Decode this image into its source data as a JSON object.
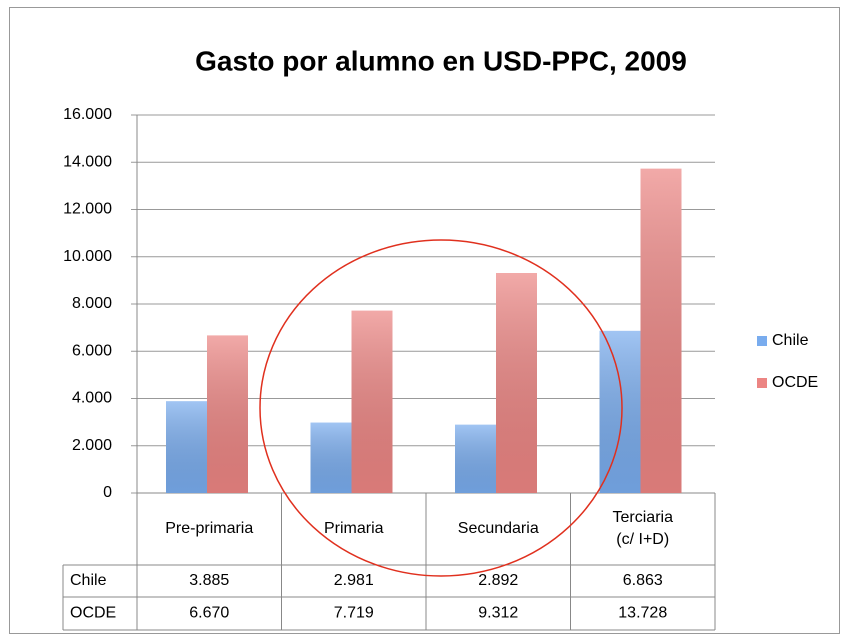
{
  "chart_data": {
    "type": "bar",
    "title": "Gasto por alumno en USD-PPC, 2009",
    "categories": [
      "Pre-primaria",
      "Primaria",
      "Secundaria",
      "Terciaria\n(c/ I+D)"
    ],
    "series": [
      {
        "name": "Chile",
        "color": "#79acee",
        "values": [
          3885,
          2981,
          2892,
          6863
        ],
        "value_labels": [
          "3.885",
          "2.981",
          "2.892",
          "6.863"
        ]
      },
      {
        "name": "OCDE",
        "color": "#ec8583",
        "values": [
          6670,
          7719,
          9312,
          13728
        ],
        "value_labels": [
          "6.670",
          "7.719",
          "9.312",
          "13.728"
        ]
      }
    ],
    "ylim": [
      0,
      16000
    ],
    "yticks": [
      0,
      {
        "value": 2000,
        "label": "2.000"
      },
      {
        "value": 4000,
        "label": "4.000"
      },
      {
        "value": 6000,
        "label": "6.000"
      },
      {
        "value": 8000,
        "label": "8.000"
      },
      {
        "value": 10000,
        "label": "10.000"
      },
      {
        "value": 12000,
        "label": "12.000"
      },
      {
        "value": 14000,
        "label": "14.000"
      },
      {
        "value": 16000,
        "label": "16.000"
      }
    ],
    "grid": true,
    "legend": "right"
  }
}
